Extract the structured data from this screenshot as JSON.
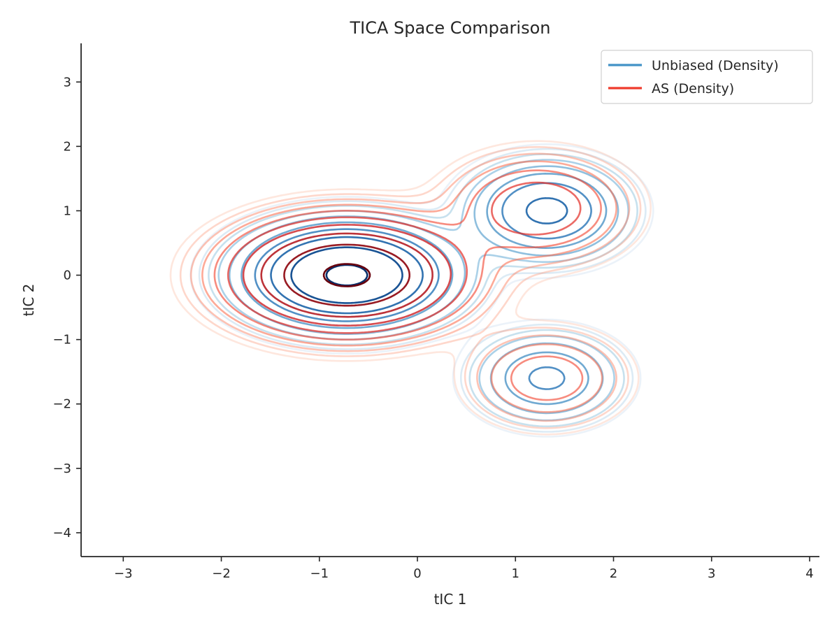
{
  "chart_data": {
    "type": "contour",
    "title": "TICA Space Comparison",
    "xlabel": "tIC 1",
    "ylabel": "tIC 2",
    "xlim": [
      -3.43,
      4.1
    ],
    "ylim": [
      -4.37,
      3.6
    ],
    "x_ticks": [
      -3,
      -2,
      -1,
      0,
      1,
      2,
      3,
      4
    ],
    "y_ticks": [
      -4,
      -3,
      -2,
      -1,
      0,
      1,
      2,
      3
    ],
    "x_tick_labels": [
      "−3",
      "−2",
      "−1",
      "0",
      "1",
      "2",
      "3",
      "4"
    ],
    "y_tick_labels": [
      "−4",
      "−3",
      "−2",
      "−1",
      "0",
      "1",
      "2",
      "3"
    ],
    "grid": false,
    "legend_position": "top-right",
    "series": [
      {
        "name": "Unbiased (Density)",
        "color": "#4292c6",
        "colormap": "Blues",
        "modes": [
          {
            "center": [
              -0.72,
              0.0
            ],
            "sigma": [
              0.55,
              0.42
            ],
            "weight": 1.0
          },
          {
            "center": [
              1.32,
              1.0
            ],
            "sigma": [
              0.42,
              0.4
            ],
            "weight": 0.42
          },
          {
            "center": [
              1.32,
              -1.6
            ],
            "sigma": [
              0.4,
              0.38
            ],
            "weight": 0.26
          }
        ]
      },
      {
        "name": "AS (Density)",
        "color": "#ef3b2c",
        "colormap": "Reds",
        "modes": [
          {
            "center": [
              -0.72,
              0.0
            ],
            "sigma": [
              0.62,
              0.46
            ],
            "weight": 1.0
          },
          {
            "center": [
              1.22,
              1.04
            ],
            "sigma": [
              0.5,
              0.45
            ],
            "weight": 0.22
          },
          {
            "center": [
              1.32,
              -1.6
            ],
            "sigma": [
              0.45,
              0.42
            ],
            "weight": 0.13
          }
        ]
      }
    ],
    "contour_levels": 10
  }
}
